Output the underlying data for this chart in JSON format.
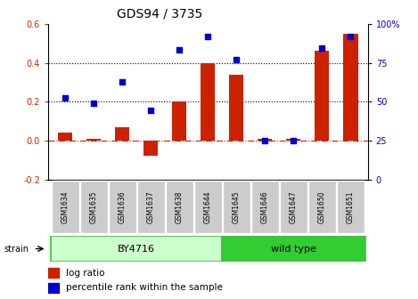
{
  "title": "GDS94 / 3735",
  "samples": [
    "GSM1634",
    "GSM1635",
    "GSM1636",
    "GSM1637",
    "GSM1638",
    "GSM1644",
    "GSM1645",
    "GSM1646",
    "GSM1647",
    "GSM1650",
    "GSM1651"
  ],
  "log_ratio": [
    0.04,
    0.01,
    0.07,
    -0.08,
    0.2,
    0.4,
    0.34,
    0.01,
    0.01,
    0.46,
    0.55
  ],
  "percentile_rank_values": [
    0.22,
    0.19,
    0.3,
    0.155,
    0.465,
    0.535,
    0.415,
    0.0,
    0.0,
    0.475,
    0.535
  ],
  "by4716_count": 6,
  "wildtype_count": 5,
  "bar_color": "#cc2200",
  "dot_color": "#0000cc",
  "bar_width": 0.5,
  "ylim_left": [
    -0.2,
    0.6
  ],
  "yticks_left": [
    -0.2,
    0.0,
    0.2,
    0.4,
    0.6
  ],
  "yticks_right": [
    0,
    25,
    50,
    75,
    100
  ],
  "hlines_dotted": [
    0.2,
    0.4
  ],
  "hline_dashdot": 0.0,
  "bg_color": "#ffffff",
  "strain_label": "strain",
  "by4716_label": "BY4716",
  "wildtype_label": "wild type",
  "by4716_color_light": "#ccffcc",
  "by4716_color_border": "#44bb44",
  "wildtype_color": "#33cc33",
  "wildtype_color_border": "#44bb44",
  "sample_box_color": "#cccccc",
  "sample_box_border": "#999999",
  "legend_log_ratio": "log ratio",
  "legend_percentile": "percentile rank within the sample",
  "title_fontsize": 10,
  "tick_fontsize": 7,
  "sample_fontsize": 5.5,
  "strain_bar_fontsize": 8,
  "legend_fontsize": 7.5
}
